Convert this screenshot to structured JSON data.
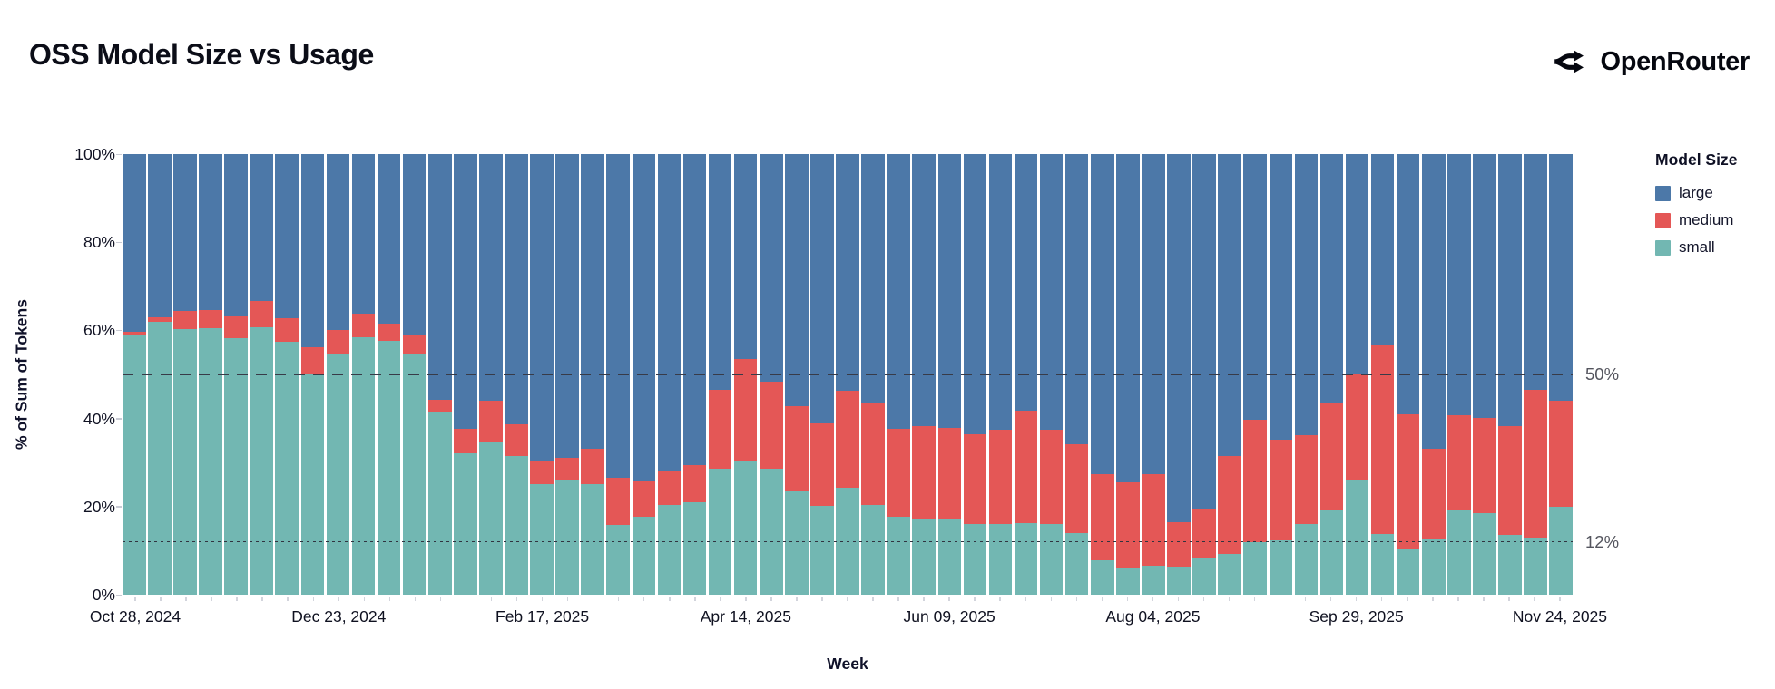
{
  "header": {
    "title": "OSS Model Size vs Usage",
    "brand_name": "OpenRouter"
  },
  "chart": {
    "y_axis": {
      "title": "% of Sum of Tokens",
      "ticks": [
        "100%",
        "80%",
        "60%",
        "40%",
        "20%",
        "0%"
      ]
    },
    "x_axis": {
      "title": "Week",
      "tick_labels": [
        "Oct 28, 2024",
        "Dec 23, 2024",
        "Feb 17, 2025",
        "Apr 14, 2025",
        "Jun 09, 2025",
        "Aug 04, 2025",
        "Sep 29, 2025",
        "Nov 24, 2025"
      ]
    },
    "legend": {
      "title": "Model Size",
      "items": [
        {
          "label": "large",
          "color": "#4c78a8"
        },
        {
          "label": "medium",
          "color": "#e45756"
        },
        {
          "label": "small",
          "color": "#72b7b2"
        }
      ]
    },
    "reference_lines": [
      {
        "label": "50%",
        "value": 50,
        "style": "dashed"
      },
      {
        "label": "12%",
        "value": 12,
        "style": "dotted"
      }
    ]
  },
  "chart_data": {
    "type": "bar",
    "stacked": true,
    "unit": "percent of sum of tokens",
    "title": "OSS Model Size vs Usage",
    "xlabel": "Week",
    "ylabel": "% of Sum of Tokens",
    "ylim": [
      0,
      100
    ],
    "legend_position": "right",
    "label_every_n_weeks": 8,
    "x": [
      "Oct 28, 2024",
      "Nov 04, 2024",
      "Nov 11, 2024",
      "Nov 18, 2024",
      "Nov 25, 2024",
      "Dec 02, 2024",
      "Dec 09, 2024",
      "Dec 16, 2024",
      "Dec 23, 2024",
      "Dec 30, 2024",
      "Jan 06, 2025",
      "Jan 13, 2025",
      "Jan 20, 2025",
      "Jan 27, 2025",
      "Feb 03, 2025",
      "Feb 10, 2025",
      "Feb 17, 2025",
      "Feb 24, 2025",
      "Mar 03, 2025",
      "Mar 10, 2025",
      "Mar 17, 2025",
      "Mar 24, 2025",
      "Mar 31, 2025",
      "Apr 07, 2025",
      "Apr 14, 2025",
      "Apr 21, 2025",
      "Apr 28, 2025",
      "May 05, 2025",
      "May 12, 2025",
      "May 19, 2025",
      "May 26, 2025",
      "Jun 02, 2025",
      "Jun 09, 2025",
      "Jun 16, 2025",
      "Jun 23, 2025",
      "Jun 30, 2025",
      "Jul 07, 2025",
      "Jul 14, 2025",
      "Jul 21, 2025",
      "Jul 28, 2025",
      "Aug 04, 2025",
      "Aug 11, 2025",
      "Aug 18, 2025",
      "Aug 25, 2025",
      "Sep 01, 2025",
      "Sep 08, 2025",
      "Sep 15, 2025",
      "Sep 22, 2025",
      "Sep 29, 2025",
      "Oct 06, 2025",
      "Oct 13, 2025",
      "Oct 20, 2025",
      "Oct 27, 2025",
      "Nov 03, 2025",
      "Nov 10, 2025",
      "Nov 17, 2025",
      "Nov 24, 2025"
    ],
    "series": [
      {
        "name": "small",
        "color": "#72b7b2",
        "values": [
          59.1,
          61.9,
          60.3,
          60.5,
          58.2,
          60.6,
          57.4,
          49.9,
          54.6,
          58.5,
          57.7,
          54.7,
          41.6,
          32.0,
          34.6,
          31.4,
          25.1,
          26.2,
          25.1,
          15.9,
          17.7,
          20.3,
          20.9,
          28.5,
          30.5,
          28.5,
          23.4,
          20.2,
          24.2,
          20.4,
          17.7,
          17.2,
          17.1,
          16.1,
          16.1,
          16.3,
          16.1,
          14.0,
          7.8,
          6.1,
          6.5,
          6.3,
          8.4,
          9.3,
          12.0,
          12.3,
          16.1,
          19.1,
          25.9,
          13.7,
          10.2,
          12.8,
          19.1,
          18.5,
          13.5,
          12.9,
          20.0
        ]
      },
      {
        "name": "medium",
        "color": "#e45756",
        "values": [
          0.6,
          1.0,
          4.2,
          4.2,
          5.0,
          6.1,
          5.3,
          6.3,
          5.5,
          5.3,
          3.9,
          4.3,
          2.7,
          5.7,
          9.4,
          7.2,
          5.4,
          4.8,
          8.1,
          10.7,
          8.1,
          7.8,
          8.6,
          18.1,
          22.9,
          19.8,
          19.4,
          18.6,
          22.0,
          23.1,
          20.0,
          21.1,
          20.8,
          20.3,
          21.3,
          25.5,
          21.3,
          20.2,
          19.5,
          19.5,
          20.8,
          10.2,
          11.0,
          22.1,
          27.8,
          22.8,
          20.1,
          24.5,
          24.0,
          43.1,
          30.7,
          20.3,
          21.6,
          21.6,
          24.8,
          33.7,
          24.0
        ]
      },
      {
        "name": "large",
        "color": "#4c78a8",
        "values": [
          40.3,
          37.1,
          35.5,
          35.3,
          36.8,
          33.3,
          37.3,
          43.8,
          39.9,
          36.2,
          38.4,
          41.0,
          55.7,
          62.3,
          56.0,
          61.4,
          69.5,
          69.0,
          66.8,
          73.4,
          74.2,
          71.9,
          70.5,
          53.4,
          46.6,
          51.7,
          57.2,
          61.2,
          53.8,
          56.5,
          62.3,
          61.7,
          62.1,
          63.6,
          62.6,
          58.2,
          62.6,
          65.8,
          72.7,
          74.4,
          72.7,
          83.5,
          80.6,
          68.6,
          60.2,
          64.9,
          63.8,
          56.4,
          50.1,
          43.2,
          59.1,
          66.9,
          59.3,
          59.9,
          61.7,
          53.4,
          56.0
        ]
      }
    ],
    "annotations": [
      {
        "text": "50%",
        "y": 50,
        "style": "dashed-line"
      },
      {
        "text": "12%",
        "y": 12,
        "style": "dotted-line"
      }
    ]
  }
}
